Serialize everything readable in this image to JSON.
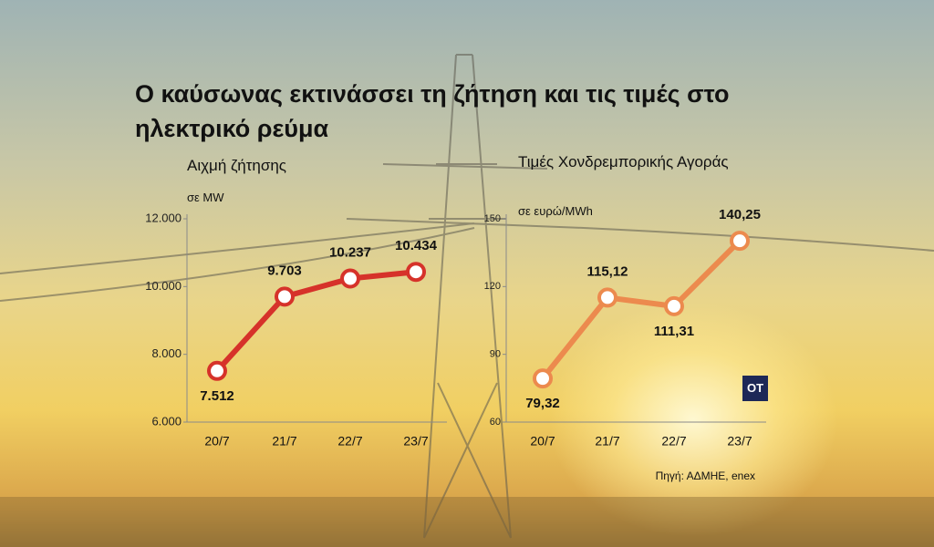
{
  "title": "Ο καύσωνας εκτινάσσει τη ζήτηση και τις τιμές στο ηλεκτρικό ρεύμα",
  "source": "Πηγή: ΑΔΜΗΕ, enex",
  "logo": "OT",
  "chart_data": [
    {
      "type": "line",
      "title": "Αιχμή ζήτησης",
      "subtitle": "σε MW",
      "categories": [
        "20/7",
        "21/7",
        "22/7",
        "23/7"
      ],
      "values": [
        7512,
        9703,
        10237,
        10434
      ],
      "value_labels": [
        "7.512",
        "9.703",
        "10.237",
        "10.434"
      ],
      "color": "#d6322a",
      "ylim": [
        6000,
        12000
      ],
      "yticks": [
        {
          "value": 6000,
          "label": "6.000"
        },
        {
          "value": 8000,
          "label": "8.000"
        },
        {
          "value": 10000,
          "label": "10.000"
        },
        {
          "value": 12000,
          "label": "12.000"
        }
      ]
    },
    {
      "type": "line",
      "title": "Τιμές Χονδρεμπορικής Αγοράς",
      "subtitle": "σε ευρώ/MWh",
      "categories": [
        "20/7",
        "21/7",
        "22/7",
        "23/7"
      ],
      "values": [
        79.32,
        115.12,
        111.31,
        140.25
      ],
      "value_labels": [
        "79,32",
        "115,12",
        "111,31",
        "140,25"
      ],
      "color": "#ec8a4e",
      "ylim": [
        60,
        150
      ],
      "yticks": [
        60,
        90,
        120,
        150
      ]
    }
  ]
}
